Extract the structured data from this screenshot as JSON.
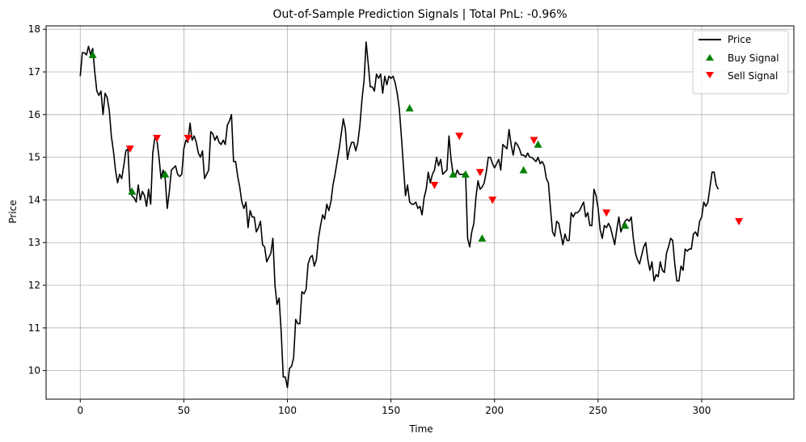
{
  "chart_data": {
    "type": "line",
    "title": "Out-of-Sample Prediction Signals | Total PnL: -0.96%",
    "xlabel": "Time",
    "ylabel": "Price",
    "xlim": [
      -16.5,
      344.5
    ],
    "ylim": [
      9.33,
      18.08
    ],
    "xticks": [
      0,
      50,
      100,
      150,
      200,
      250,
      300
    ],
    "yticks": [
      10,
      11,
      12,
      13,
      14,
      15,
      16,
      17,
      18
    ],
    "grid": true,
    "legend_position": "top-right",
    "legend": [
      "Price",
      "Buy Signal",
      "Sell Signal"
    ],
    "colors": {
      "price": "#000000",
      "buy": "#008000",
      "sell": "#ff0000",
      "grid": "#b0b0b0"
    },
    "series": [
      {
        "name": "Price",
        "x_start": 0,
        "values": [
          16.9,
          17.45,
          17.45,
          17.4,
          17.6,
          17.4,
          17.55,
          17.0,
          16.55,
          16.45,
          16.55,
          16.0,
          16.5,
          16.4,
          16.1,
          15.5,
          15.15,
          14.7,
          14.4,
          14.6,
          14.5,
          14.8,
          15.15,
          15.2,
          14.2,
          14.1,
          14.05,
          13.95,
          14.35,
          14.0,
          14.2,
          14.1,
          13.85,
          14.25,
          13.9,
          15.1,
          15.45,
          15.4,
          15.0,
          14.5,
          14.7,
          14.5,
          13.8,
          14.2,
          14.7,
          14.75,
          14.8,
          14.6,
          14.55,
          14.6,
          15.2,
          15.4,
          15.35,
          15.8,
          15.4,
          15.5,
          15.35,
          15.1,
          15.0,
          15.15,
          14.5,
          14.6,
          14.7,
          15.6,
          15.55,
          15.4,
          15.5,
          15.35,
          15.3,
          15.4,
          15.3,
          15.75,
          15.85,
          16.0,
          14.9,
          14.9,
          14.55,
          14.3,
          13.95,
          13.8,
          13.95,
          13.35,
          13.75,
          13.6,
          13.6,
          13.25,
          13.35,
          13.5,
          12.95,
          12.9,
          12.55,
          12.65,
          12.75,
          13.1,
          12.0,
          11.55,
          11.7,
          10.9,
          9.85,
          9.85,
          9.6,
          10.05,
          10.1,
          10.3,
          11.2,
          11.1,
          11.1,
          11.85,
          11.8,
          11.9,
          12.5,
          12.65,
          12.7,
          12.45,
          12.6,
          13.1,
          13.4,
          13.65,
          13.55,
          13.9,
          13.75,
          13.95,
          14.35,
          14.6,
          14.9,
          15.2,
          15.55,
          15.9,
          15.65,
          14.95,
          15.2,
          15.35,
          15.35,
          15.15,
          15.35,
          15.75,
          16.35,
          16.8,
          17.7,
          17.2,
          16.65,
          16.65,
          16.55,
          16.95,
          16.85,
          16.95,
          16.5,
          16.9,
          16.7,
          16.9,
          16.85,
          16.9,
          16.75,
          16.5,
          16.15,
          15.5,
          14.8,
          14.1,
          14.35,
          13.95,
          13.9,
          13.9,
          13.95,
          13.8,
          13.85,
          13.65,
          14.05,
          14.25,
          14.65,
          14.4,
          14.6,
          14.7,
          15.0,
          14.8,
          14.95,
          14.6,
          14.65,
          14.7,
          15.5,
          14.95,
          14.6,
          14.55,
          14.7,
          14.6,
          14.6,
          14.6,
          14.65,
          13.1,
          12.9,
          13.25,
          13.45,
          14.05,
          14.45,
          14.25,
          14.3,
          14.4,
          14.65,
          15.0,
          15.0,
          14.85,
          14.75,
          14.85,
          14.95,
          14.7,
          15.3,
          15.25,
          15.2,
          15.65,
          15.3,
          15.05,
          15.35,
          15.3,
          15.2,
          15.05,
          15.05,
          15.0,
          15.1,
          15.0,
          15.0,
          14.95,
          14.9,
          15.0,
          14.85,
          14.9,
          14.8,
          14.5,
          14.4,
          13.8,
          13.25,
          13.15,
          13.5,
          13.45,
          13.2,
          12.95,
          13.2,
          13.05,
          13.05,
          13.7,
          13.6,
          13.7,
          13.7,
          13.75,
          13.85,
          13.95,
          13.6,
          13.7,
          13.4,
          13.4,
          14.25,
          14.1,
          13.8,
          13.3,
          13.1,
          13.4,
          13.35,
          13.45,
          13.35,
          13.15,
          12.95,
          13.3,
          13.6,
          13.25,
          13.4,
          13.5,
          13.55,
          13.5,
          13.6,
          13.1,
          12.75,
          12.6,
          12.5,
          12.7,
          12.9,
          13.0,
          12.6,
          12.35,
          12.55,
          12.1,
          12.25,
          12.2,
          12.55,
          12.35,
          12.3,
          12.75,
          12.9,
          13.1,
          13.05,
          12.5,
          12.1,
          12.1,
          12.45,
          12.35,
          12.85,
          12.8,
          12.85,
          12.85,
          13.2,
          13.25,
          13.15,
          13.5,
          13.6,
          13.95,
          13.85,
          13.95,
          14.3,
          14.65,
          14.65,
          14.35,
          14.25
        ]
      },
      {
        "name": "Buy Signal",
        "x": [
          6,
          25,
          41,
          159,
          180,
          186,
          194,
          214,
          221,
          263
        ],
        "values": [
          17.4,
          14.2,
          14.6,
          16.15,
          14.6,
          14.6,
          13.1,
          14.7,
          15.3,
          13.4
        ]
      },
      {
        "name": "Sell Signal",
        "x": [
          24,
          37,
          52,
          171,
          183,
          193,
          199,
          219,
          254,
          318
        ],
        "values": [
          15.2,
          15.45,
          15.45,
          14.35,
          15.5,
          14.65,
          14.0,
          15.4,
          13.7,
          13.5
        ]
      }
    ]
  }
}
